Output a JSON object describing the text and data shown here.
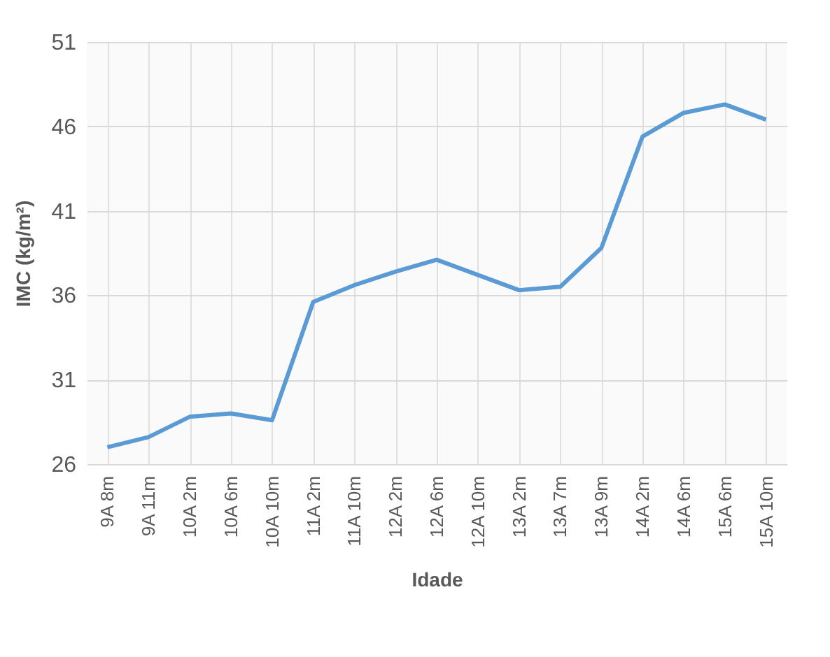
{
  "chart_data": {
    "type": "line",
    "xlabel": "Idade",
    "ylabel": "IMC (kg/m²)",
    "categories": [
      "9A 8m",
      "9A 11m",
      "10A 2m",
      "10A 6m",
      "10A 10m",
      "11A 2m",
      "11A 10m",
      "12A 2m",
      "12A 6m",
      "12A 10m",
      "13A 2m",
      "13A 7m",
      "13A 9m",
      "14A 2m",
      "14A 6m",
      "15A 6m",
      "15A 10m"
    ],
    "series": [
      {
        "color": "#5b9bd5",
        "values": [
          27.0,
          27.6,
          28.8,
          29.0,
          28.6,
          35.6,
          36.6,
          37.4,
          38.1,
          37.2,
          36.3,
          36.5,
          38.8,
          45.4,
          46.8,
          47.3,
          46.4
        ]
      }
    ],
    "ylim": [
      26,
      51
    ],
    "yticks": [
      26,
      31,
      36,
      41,
      46,
      51
    ],
    "grid": true,
    "marker": "none",
    "line_style": "solid"
  }
}
